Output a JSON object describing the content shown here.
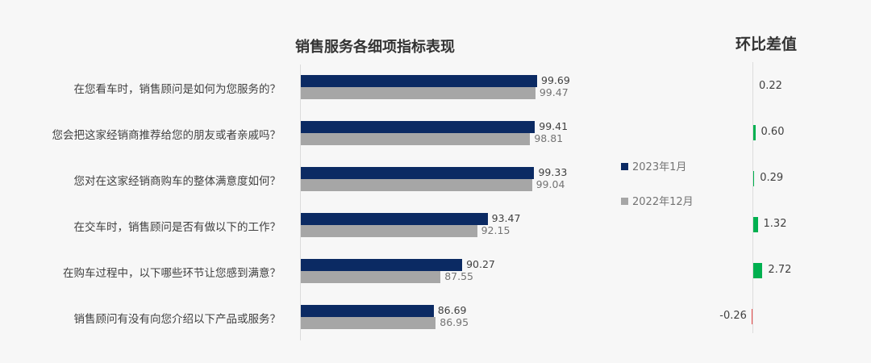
{
  "chart_data": {
    "type": "bar",
    "orientation": "horizontal",
    "title": "销售服务各细项指标表现",
    "categories": [
      "在您看车时，销售顾问是如何为您服务的？",
      "您会把这家经销商推荐给您的朋友或者亲戚吗？",
      "您对在这家经销商购车的整体满意度如何？",
      "在交车时，销售顾问是否有做以下的工作？",
      "在购车过程中，以下哪些环节让您感到满意？",
      "销售顾问有没有向您介绍以下产品或服务？"
    ],
    "series": [
      {
        "name": "2023年1月",
        "color": "#0b2a63",
        "values": [
          99.69,
          99.41,
          99.33,
          93.47,
          90.27,
          86.69
        ]
      },
      {
        "name": "2022年12月",
        "color": "#a6a6a6",
        "values": [
          99.47,
          98.81,
          99.04,
          92.15,
          87.55,
          86.95
        ]
      }
    ],
    "xlim": [
      70,
      100
    ],
    "grid": false,
    "legend_position": "right",
    "diff": {
      "title": "环比差值",
      "values": [
        0.22,
        0.6,
        0.29,
        1.32,
        2.72,
        -0.26
      ],
      "labels": [
        "0.22",
        "0.60",
        "0.29",
        "1.32",
        "2.72",
        "-0.26"
      ],
      "positive_color": "#00b050",
      "negative_color": "#e84a4a"
    }
  },
  "legend": {
    "items": [
      {
        "label": "2023年1月",
        "color": "#0b2a63"
      },
      {
        "label": "2022年12月",
        "color": "#a6a6a6"
      }
    ]
  }
}
